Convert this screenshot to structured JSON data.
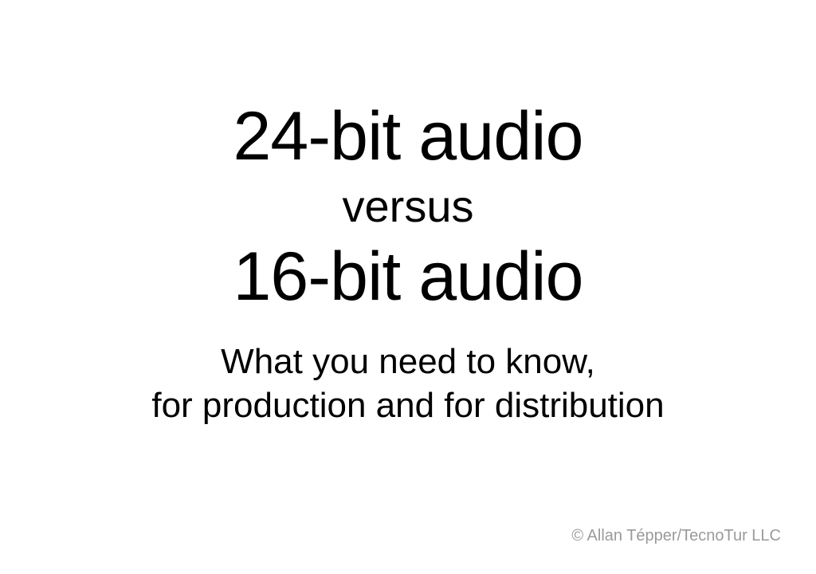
{
  "slide": {
    "background_color": "#ffffff",
    "text_color": "#000000",
    "copyright_color": "#9a9a9a",
    "font_family": "Helvetica Neue",
    "font_weight": 300,
    "title": {
      "line1": "24-bit audio",
      "versus": "versus",
      "line2": "16-bit audio",
      "title_fontsize": 86,
      "versus_fontsize": 56
    },
    "subtitle": {
      "line1": "What you need to know,",
      "line2": "for production and for distribution",
      "fontsize": 44
    },
    "copyright": {
      "text": "© Allan Tépper/TecnoTur LLC",
      "fontsize": 20
    }
  }
}
